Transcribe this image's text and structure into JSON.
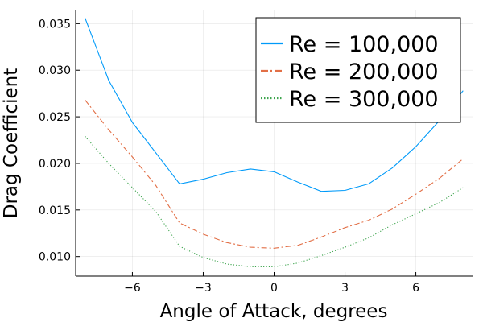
{
  "chart_data": {
    "type": "line",
    "xlabel": "Angle of Attack, degrees",
    "ylabel": "Drag Coefficient",
    "xlim": [
      -8.4,
      8.4
    ],
    "ylim": [
      0.0079,
      0.0365
    ],
    "xticks": [
      -6,
      -3,
      0,
      3,
      6
    ],
    "xtick_labels": [
      "−6",
      "−3",
      "0",
      "3",
      "6"
    ],
    "yticks": [
      0.01,
      0.015,
      0.02,
      0.025,
      0.03,
      0.035
    ],
    "ytick_labels": [
      "0.010",
      "0.015",
      "0.020",
      "0.025",
      "0.030",
      "0.035"
    ],
    "grid": true,
    "legend_position": "top-right",
    "x": [
      -8,
      -7,
      -6,
      -5,
      -4,
      -3,
      -2,
      -1,
      0,
      1,
      2,
      3,
      4,
      5,
      6,
      7,
      8
    ],
    "series": [
      {
        "name": "Re = 100,000",
        "color": "#009af9",
        "style": "solid",
        "values": [
          0.0356,
          0.0289,
          0.0244,
          0.0211,
          0.0178,
          0.0183,
          0.019,
          0.0194,
          0.0191,
          0.018,
          0.017,
          0.0171,
          0.0178,
          0.0195,
          0.0218,
          0.0246,
          0.0278
        ]
      },
      {
        "name": "Re = 200,000",
        "color": "#e26f46",
        "style": "dashdot",
        "values": [
          0.0268,
          0.0236,
          0.0207,
          0.0176,
          0.0136,
          0.0124,
          0.0115,
          0.011,
          0.0109,
          0.0112,
          0.0121,
          0.0131,
          0.0139,
          0.0151,
          0.0167,
          0.0184,
          0.0205
        ]
      },
      {
        "name": "Re = 300,000",
        "color": "#3da44d",
        "style": "dotted",
        "values": [
          0.0229,
          0.02,
          0.0174,
          0.0148,
          0.0111,
          0.0099,
          0.0092,
          0.0089,
          0.0089,
          0.0093,
          0.0101,
          0.011,
          0.012,
          0.0134,
          0.0146,
          0.0158,
          0.0174
        ]
      }
    ]
  }
}
